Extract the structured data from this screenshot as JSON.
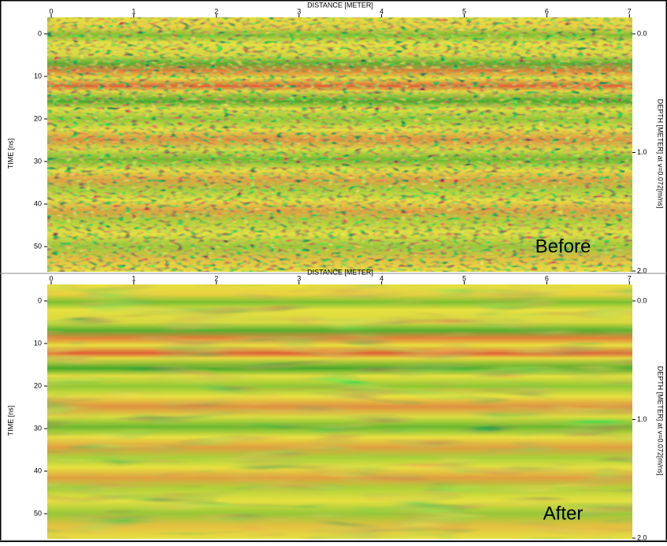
{
  "panels": [
    {
      "x_axis_label": "DISTANCE [METER]",
      "x_ticks": [
        "0",
        "1",
        "2",
        "3",
        "4",
        "5",
        "6",
        "7"
      ],
      "y_axis_label": "TIME [ns]",
      "y_ticks": [
        "0",
        "10",
        "20",
        "30",
        "40",
        "50"
      ],
      "right_axis_label": "DEPTH [METER] at v=0.072[m/ns]",
      "right_ticks": [
        "0.0",
        "1.0",
        "2.0"
      ],
      "annotation": "Before"
    },
    {
      "x_axis_label": "DISTANCE [METER]",
      "x_ticks": [
        "0",
        "1",
        "2",
        "3",
        "4",
        "5",
        "6",
        "7"
      ],
      "y_axis_label": "TIME [ns]",
      "y_ticks": [
        "0",
        "10",
        "20",
        "30",
        "40",
        "50"
      ],
      "right_axis_label": "DEPTH [METER] at v=0.072[m/ns]",
      "right_ticks": [
        "0.0",
        "1.0",
        "2.0"
      ],
      "annotation": "After"
    }
  ]
}
